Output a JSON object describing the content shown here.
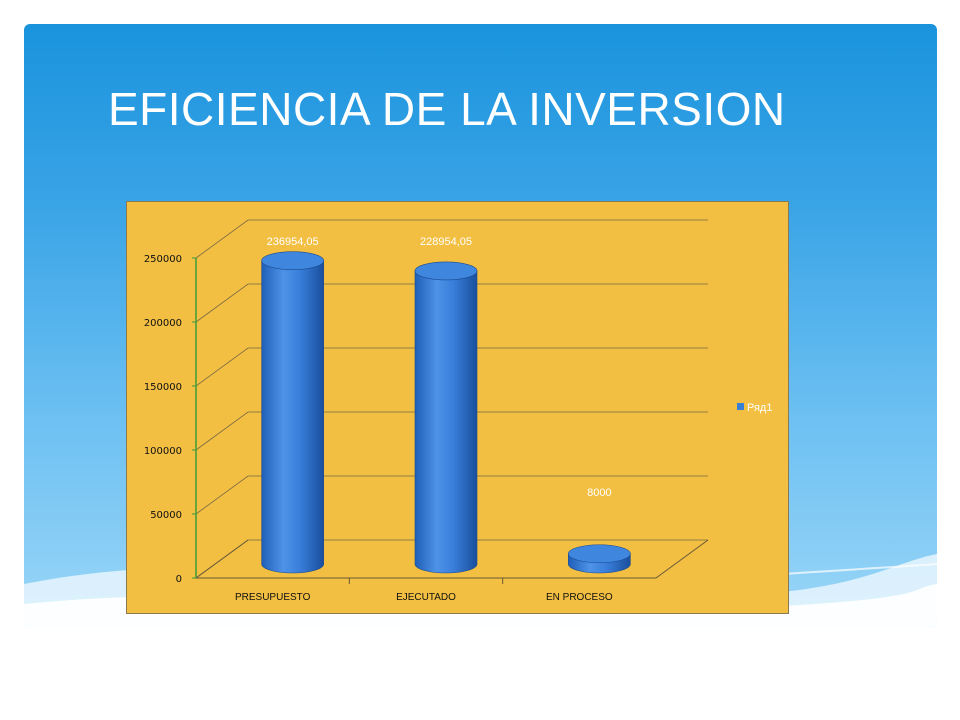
{
  "slide": {
    "title": "EFICIENCIA  DE LA INVERSION"
  },
  "chart_data": {
    "type": "bar",
    "style": "3d-cylinder",
    "categories": [
      "PRESUPUESTO",
      "EJECUTADO",
      "EN PROCESO"
    ],
    "series": [
      {
        "name": "Ряд1",
        "values": [
          236954.05,
          228954.05,
          8000
        ]
      }
    ],
    "data_labels": [
      "236954,05",
      "228954,05",
      "8000"
    ],
    "y_ticks": [
      "0",
      "50000",
      "100000",
      "150000",
      "200000",
      "250000"
    ],
    "ylim": [
      0,
      250000
    ],
    "grid": true,
    "legend_position": "right",
    "colors": {
      "bar": "#3a7fd6",
      "plot_bg": "#f2bf42",
      "axis": "#3a9d3a"
    }
  }
}
